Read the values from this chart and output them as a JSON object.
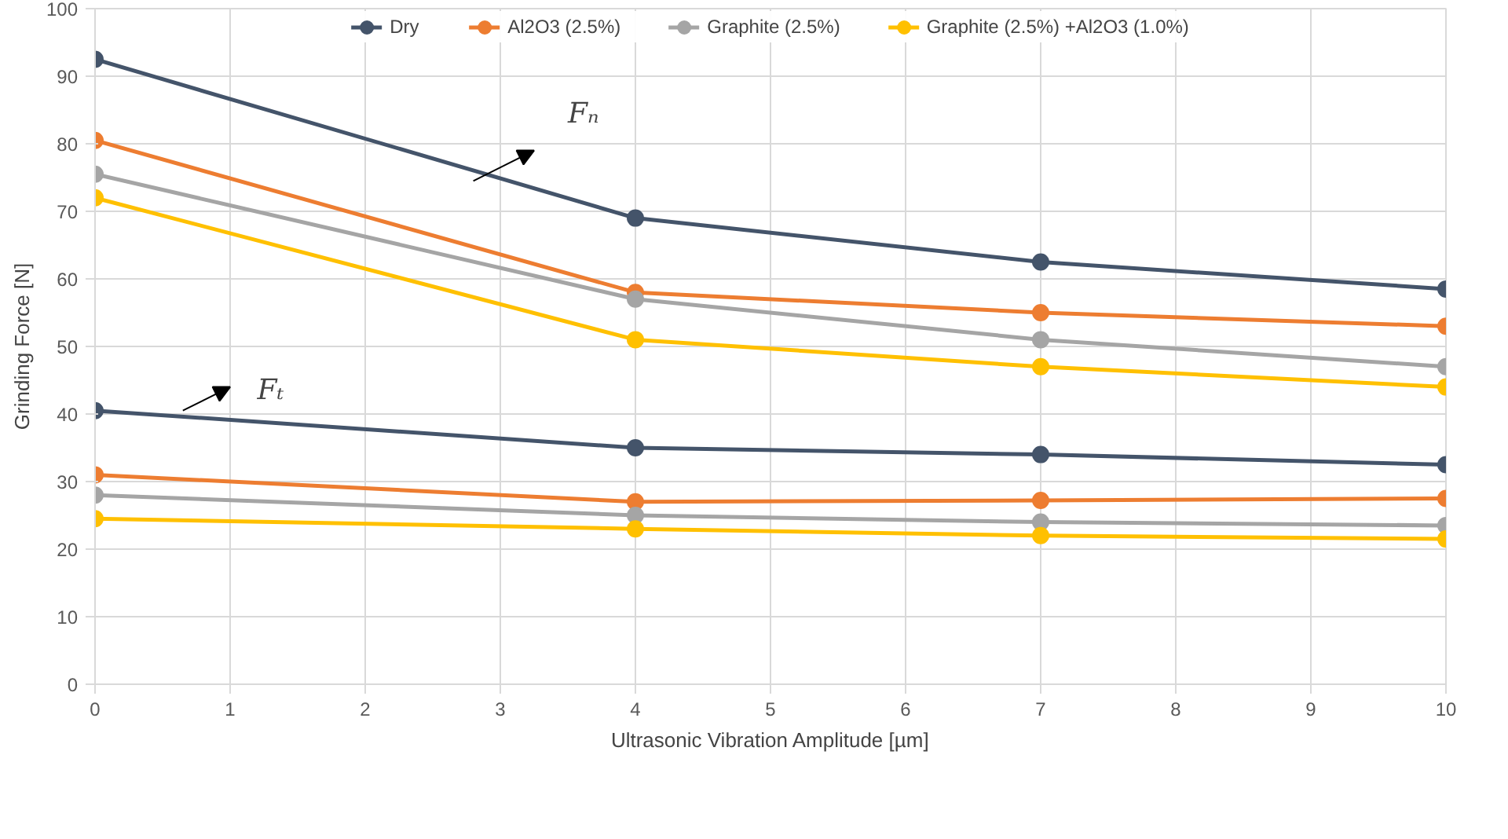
{
  "chart_data": {
    "type": "line",
    "xlabel": "Ultrasonic Vibration Amplitude [µm]",
    "ylabel": "Grinding Force [N]",
    "x": [
      0,
      4,
      7,
      10
    ],
    "series": [
      {
        "name": "Dry",
        "color": "#44546a",
        "values": [
          92.5,
          69,
          62.5,
          58.5
        ]
      },
      {
        "name": "Al2O3 (2.5%)",
        "color": "#ed7d31",
        "values": [
          80.5,
          58,
          55,
          53
        ]
      },
      {
        "name": "Graphite (2.5%)",
        "color": "#a5a5a5",
        "values": [
          75.5,
          57,
          51,
          47
        ]
      },
      {
        "name": "Graphite (2.5%) +Al2O3 (1.0%)",
        "color": "#ffc000",
        "values": [
          72,
          51,
          47,
          44
        ]
      },
      {
        "color": "#44546a",
        "values": [
          40.5,
          35,
          34,
          32.5
        ]
      },
      {
        "color": "#ed7d31",
        "values": [
          31,
          27,
          27.2,
          27.5
        ]
      },
      {
        "color": "#a5a5a5",
        "values": [
          28,
          25,
          24,
          23.5
        ]
      },
      {
        "color": "#ffc000",
        "values": [
          24.5,
          23,
          22,
          21.5
        ]
      }
    ],
    "xlim": [
      0,
      10
    ],
    "xticks": [
      0,
      1,
      2,
      3,
      4,
      5,
      6,
      7,
      8,
      9,
      10
    ],
    "ylim": [
      0,
      100
    ],
    "yticks": [
      0,
      10,
      20,
      30,
      40,
      50,
      60,
      70,
      80,
      90,
      100
    ],
    "annotations": [
      "Fₙ",
      "Fₜ"
    ],
    "grid": true,
    "legend": "top",
    "marker": "circle",
    "line_style": "solid"
  }
}
